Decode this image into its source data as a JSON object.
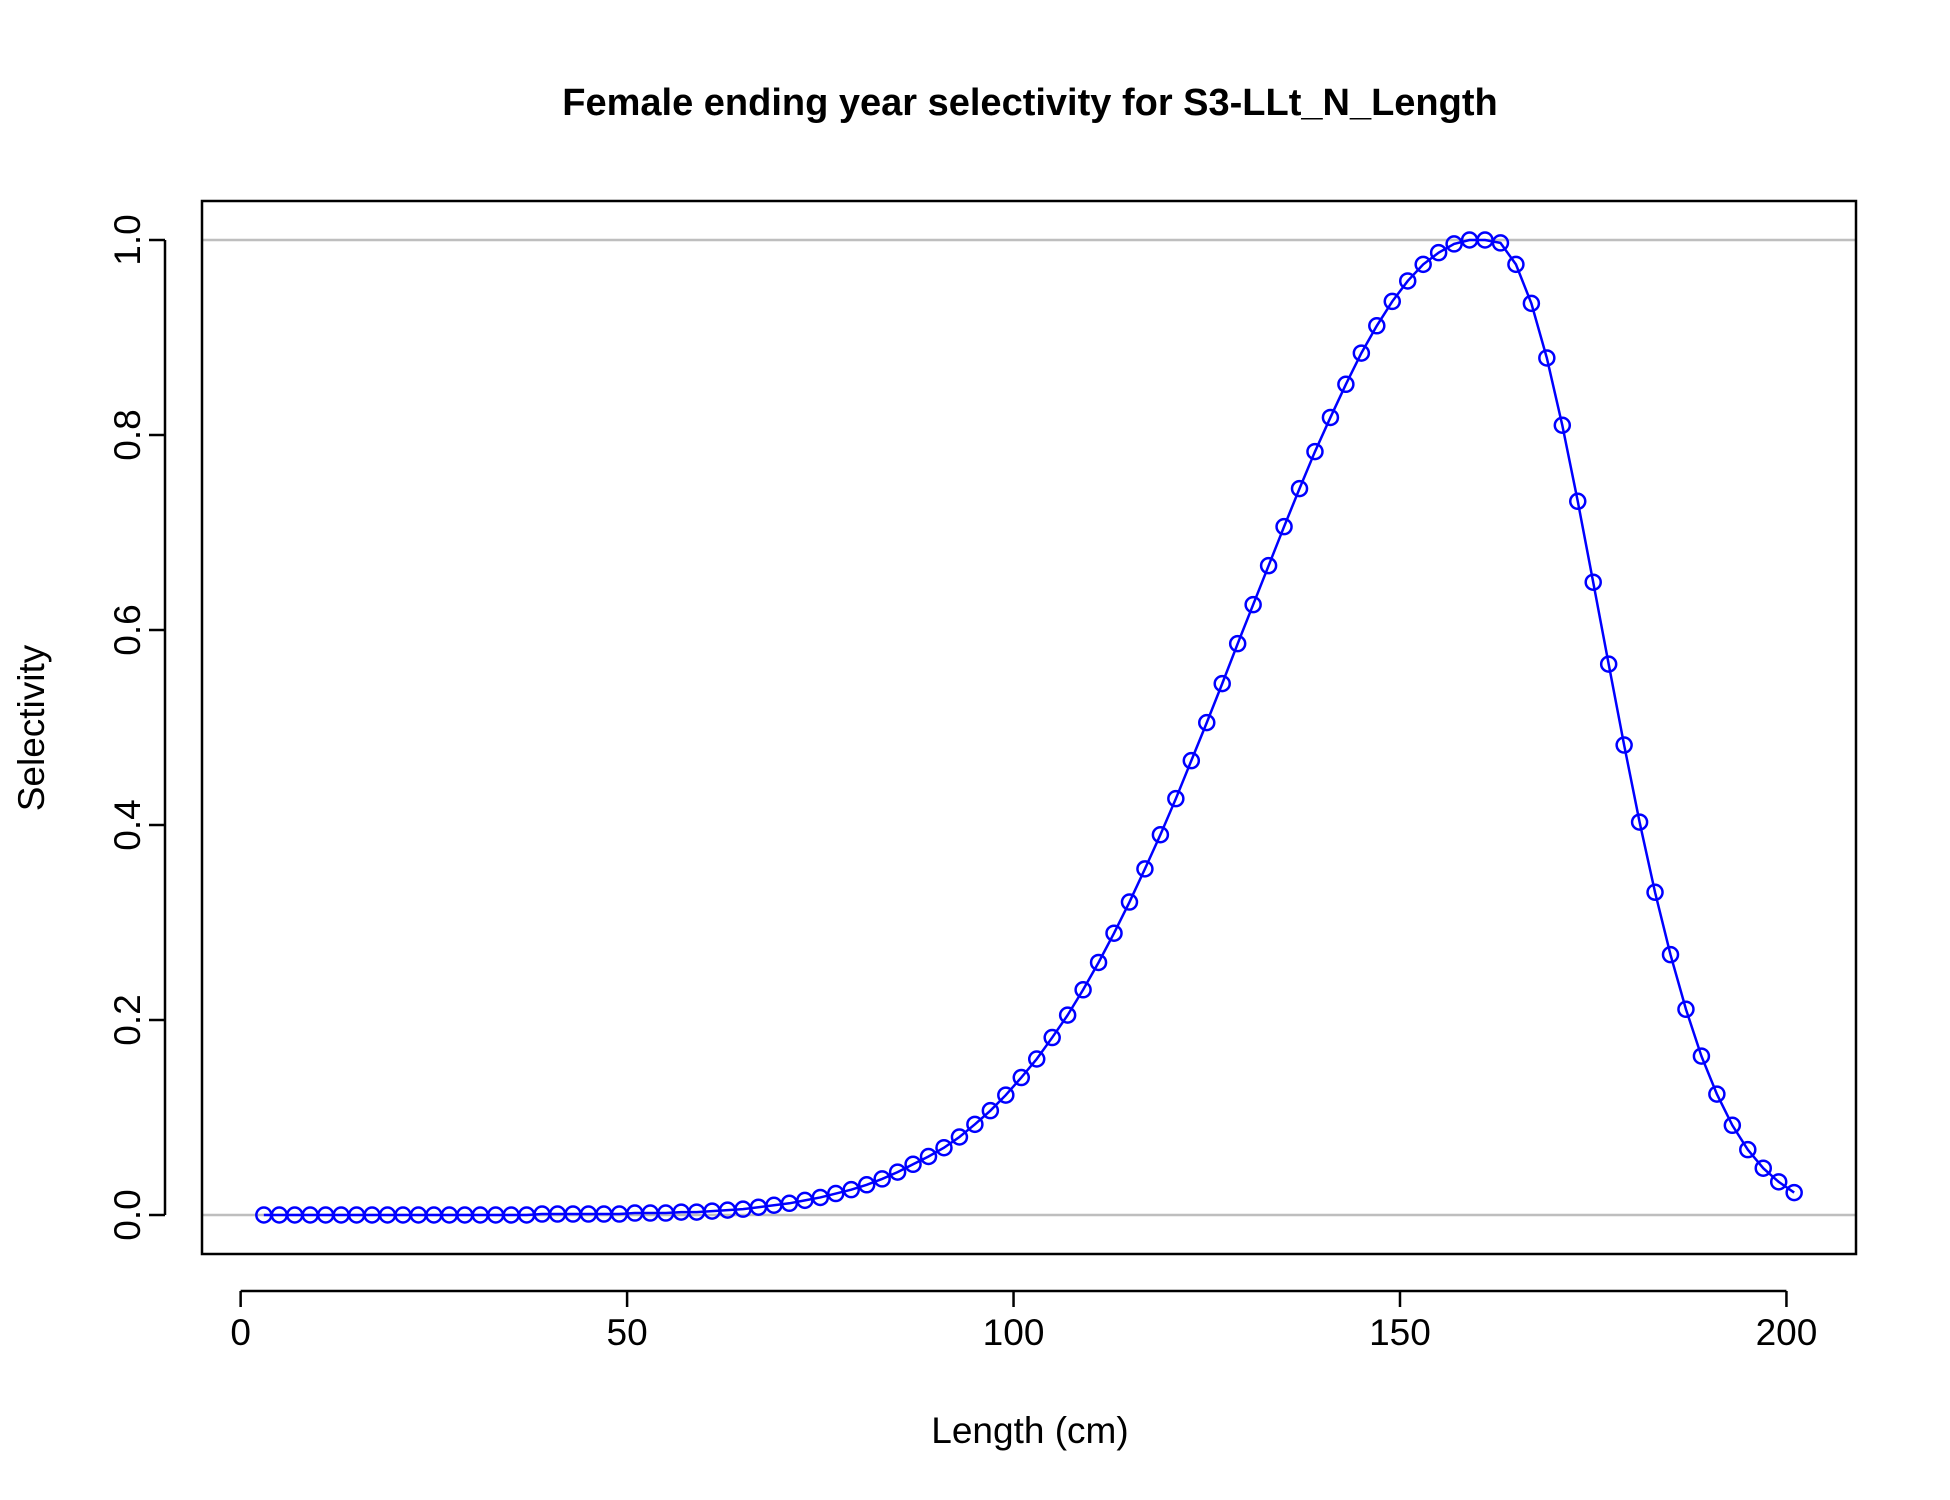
{
  "chart_data": {
    "type": "line",
    "title": "Female ending year selectivity for S3-LLt_N_Length",
    "xlabel": "Length (cm)",
    "ylabel": "Selectivity",
    "xlim": [
      -5,
      209
    ],
    "ylim": [
      -0.04,
      1.04
    ],
    "xticks": [
      "0",
      "50",
      "100",
      "150",
      "200"
    ],
    "yticks": [
      "0.0",
      "0.2",
      "0.4",
      "0.6",
      "0.8",
      "1.0"
    ],
    "reference_lines": [
      0,
      1
    ],
    "grid": false,
    "legend": "none",
    "series": [
      {
        "line_color": "#0000ff",
        "marker": "open-circle",
        "x": [
          3,
          5,
          7,
          9,
          11,
          13,
          15,
          17,
          19,
          21,
          23,
          25,
          27,
          29,
          31,
          33,
          35,
          37,
          39,
          41,
          43,
          45,
          47,
          49,
          51,
          53,
          55,
          57,
          59,
          61,
          63,
          65,
          67,
          69,
          71,
          73,
          75,
          77,
          79,
          81,
          83,
          85,
          87,
          89,
          91,
          93,
          95,
          97,
          99,
          101,
          103,
          105,
          107,
          109,
          111,
          113,
          115,
          117,
          119,
          121,
          123,
          125,
          127,
          129,
          131,
          133,
          135,
          137,
          139,
          141,
          143,
          145,
          147,
          149,
          151,
          153,
          155,
          157,
          159,
          161,
          163,
          165,
          167,
          169,
          171,
          173,
          175,
          177,
          179,
          181,
          183,
          185,
          187,
          189,
          191,
          193,
          195,
          197,
          199,
          201
        ],
        "y": [
          0.0,
          0.0,
          0.0,
          0.0,
          0.0,
          0.0,
          0.0,
          0.0,
          0.0,
          0.0,
          0.0,
          0.0,
          0.0,
          0.0,
          0.0,
          0.0,
          0.0,
          0.0,
          0.001,
          0.001,
          0.001,
          0.001,
          0.001,
          0.001,
          0.002,
          0.002,
          0.002,
          0.003,
          0.003,
          0.004,
          0.005,
          0.006,
          0.008,
          0.01,
          0.012,
          0.015,
          0.018,
          0.022,
          0.026,
          0.031,
          0.037,
          0.044,
          0.052,
          0.06,
          0.069,
          0.08,
          0.093,
          0.107,
          0.123,
          0.141,
          0.16,
          0.182,
          0.205,
          0.231,
          0.259,
          0.289,
          0.321,
          0.355,
          0.39,
          0.427,
          0.466,
          0.505,
          0.545,
          0.586,
          0.626,
          0.666,
          0.706,
          0.745,
          0.783,
          0.818,
          0.852,
          0.884,
          0.912,
          0.937,
          0.958,
          0.975,
          0.987,
          0.996,
          1.0,
          1.0,
          0.997,
          0.975,
          0.935,
          0.879,
          0.81,
          0.732,
          0.649,
          0.565,
          0.482,
          0.403,
          0.331,
          0.267,
          0.211,
          0.163,
          0.124,
          0.092,
          0.067,
          0.048,
          0.034,
          0.023
        ]
      }
    ]
  }
}
